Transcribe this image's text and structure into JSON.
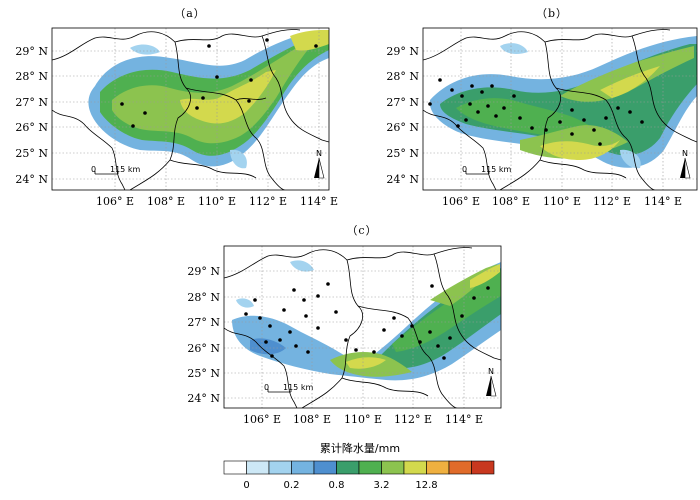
{
  "panels": [
    {
      "label": "（a）",
      "lat_labels": [
        "29° N",
        "28° N",
        "27° N",
        "26° N",
        "25° N",
        "24° N"
      ],
      "lon_labels": [
        "106° E",
        "108° E",
        "110° E",
        "112° E",
        "114° E"
      ],
      "scale_text": "115 km",
      "north_text": "N"
    },
    {
      "label": "（b）",
      "lat_labels": [
        "29° N",
        "28° N",
        "27° N",
        "26° N",
        "25° N",
        "24° N"
      ],
      "lon_labels": [
        "106° E",
        "108° E",
        "110° E",
        "112° E",
        "114° E"
      ],
      "scale_zero": "0",
      "scale_text": "115 km",
      "north_text": "N"
    },
    {
      "label": "（c）",
      "lat_labels": [
        "29° N",
        "28° N",
        "27° N",
        "26° N",
        "25° N",
        "24° N"
      ],
      "lon_labels": [
        "106° E",
        "108° E",
        "110° E",
        "112° E",
        "114° E"
      ],
      "scale_zero": "0",
      "scale_text": "115 km",
      "north_text": "N"
    }
  ],
  "scale_zero_a": "0",
  "legend": {
    "title": "累计降水量/mm",
    "colors": [
      "#ffffff",
      "#cde8f6",
      "#a3d3ef",
      "#74b3e0",
      "#4e8fcf",
      "#3a9e6b",
      "#4fb050",
      "#8cc34f",
      "#d3d94d",
      "#efb040",
      "#e06b2a",
      "#c8381f"
    ],
    "tick_labels": [
      "0",
      "0.2",
      "0.8",
      "3.2",
      "12.8"
    ]
  },
  "map_colors": {
    "land_bg": "#ffffff",
    "border": "#000000",
    "grid": "#9a9a9a",
    "station": "#000000"
  }
}
